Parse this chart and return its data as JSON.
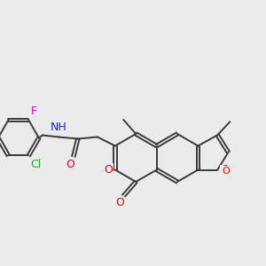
{
  "background_color": "#EBEBEB",
  "bond_color": "#3a3a3a",
  "atom_colors": {
    "Cl": "#22aa22",
    "F": "#cc00cc",
    "O": "#ee0000",
    "N": "#2222cc",
    "H": "#606060"
  },
  "figsize": [
    3.0,
    3.0
  ],
  "dpi": 100
}
